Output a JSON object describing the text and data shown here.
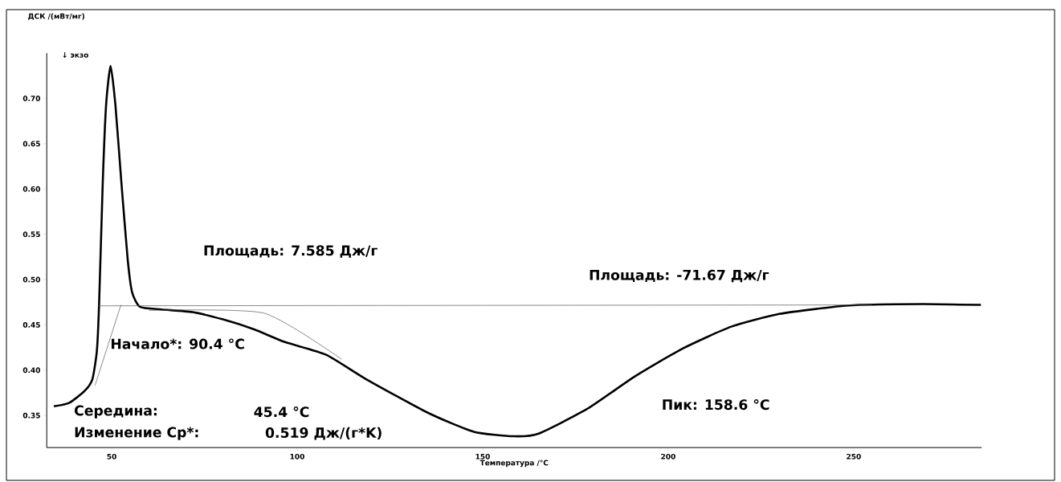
{
  "chart_data": {
    "type": "line",
    "xlabel": "Температура /°C",
    "ylabel": "ДСК /(мВт/мг)",
    "xlim": [
      32.5,
      284.5
    ],
    "ylim": [
      0.3145,
      0.75
    ],
    "xticks": [
      50,
      100,
      150,
      200,
      250
    ],
    "yticks": [
      0.35,
      {
        "value": 0.4,
        "label": "0.40"
      },
      0.45,
      {
        "value": 0.5,
        "label": "0.50"
      },
      0.55,
      {
        "value": 0.6,
        "label": "0.60"
      },
      0.65,
      {
        "value": 0.7,
        "label": "0.70"
      }
    ],
    "grid": false,
    "marker": "none",
    "series": [
      {
        "color": "#000000",
        "x": [
          34.4,
          38.6,
          42.7,
          44.8,
          46.0,
          46.6,
          47.6,
          48.5,
          49.7,
          51.0,
          52.6,
          54.3,
          55.5,
          57.6,
          63.4,
          71.8,
          80.0,
          88.4,
          96.7,
          107.8,
          118.6,
          135.2,
          147.6,
          158.4,
          165.1,
          178.1,
          191.0,
          204.0,
          217.0,
          229.9,
          242.9,
          251.5,
          268.8,
          284.3
        ],
        "values": [
          0.36,
          0.364,
          0.377,
          0.39,
          0.421,
          0.472,
          0.608,
          0.693,
          0.736,
          0.693,
          0.608,
          0.523,
          0.486,
          0.47,
          0.467,
          0.464,
          0.456,
          0.445,
          0.431,
          0.417,
          0.39,
          0.353,
          0.332,
          0.327,
          0.33,
          0.357,
          0.393,
          0.424,
          0.448,
          0.462,
          0.469,
          0.472,
          0.473,
          0.472
        ]
      },
      {
        "color": "#555555",
        "x": [
          46.5,
          255
        ],
        "values": [
          0.471,
          0.472
        ]
      },
      {
        "color": "#555555",
        "x": [
          45.5,
          52.5
        ],
        "values": [
          0.383,
          0.472
        ]
      },
      {
        "color": "#555555",
        "x": [
          60,
          91,
          112
        ],
        "values": [
          0.466,
          0.463,
          0.412
        ]
      }
    ],
    "annotations": [
      "↓ экзо",
      "Площадь: 7.585 Дж/г",
      "Площадь: -71.67 Дж/г",
      "Начало*: 90.4 °C",
      "Середина:",
      "45.4 °C",
      "Изменение Cp*:",
      "0.519 Дж/(г*K)",
      "Пик: 158.6 °C"
    ]
  }
}
